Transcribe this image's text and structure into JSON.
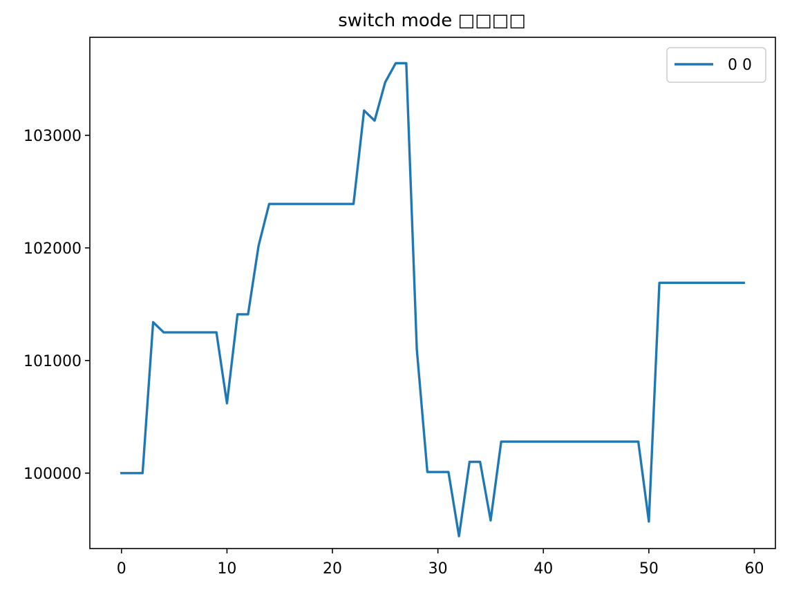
{
  "chart_data": {
    "type": "line",
    "title": "switch mode □□□□",
    "xlabel": "",
    "ylabel": "",
    "xlim": [
      -3,
      62
    ],
    "ylim": [
      99330,
      103870
    ],
    "xticks": [
      0,
      10,
      20,
      30,
      40,
      50,
      60
    ],
    "yticks": [
      100000,
      101000,
      102000,
      103000
    ],
    "grid": false,
    "legend_position": "top-right",
    "series": [
      {
        "name": "0 0",
        "color": "#1f77b4",
        "x": [
          0,
          1,
          2,
          3,
          4,
          5,
          6,
          7,
          8,
          9,
          10,
          11,
          12,
          13,
          14,
          15,
          16,
          17,
          18,
          19,
          20,
          21,
          22,
          23,
          24,
          25,
          26,
          27,
          28,
          29,
          30,
          31,
          32,
          33,
          34,
          35,
          36,
          37,
          38,
          39,
          40,
          41,
          42,
          43,
          44,
          45,
          46,
          47,
          48,
          49,
          50,
          51,
          52,
          53,
          54,
          55,
          56,
          57,
          58,
          59
        ],
        "y": [
          100000,
          100000,
          100000,
          101340,
          101250,
          101250,
          101250,
          101250,
          101250,
          101250,
          100620,
          101410,
          101410,
          102020,
          102390,
          102390,
          102390,
          102390,
          102390,
          102390,
          102390,
          102390,
          102390,
          103220,
          103130,
          103470,
          103640,
          103640,
          101100,
          100010,
          100010,
          100010,
          99440,
          100100,
          100100,
          99580,
          100280,
          100280,
          100280,
          100280,
          100280,
          100280,
          100280,
          100280,
          100280,
          100280,
          100280,
          100280,
          100280,
          100280,
          99570,
          101690,
          101690,
          101690,
          101690,
          101690,
          101690,
          101690,
          101690,
          101690
        ]
      }
    ]
  }
}
